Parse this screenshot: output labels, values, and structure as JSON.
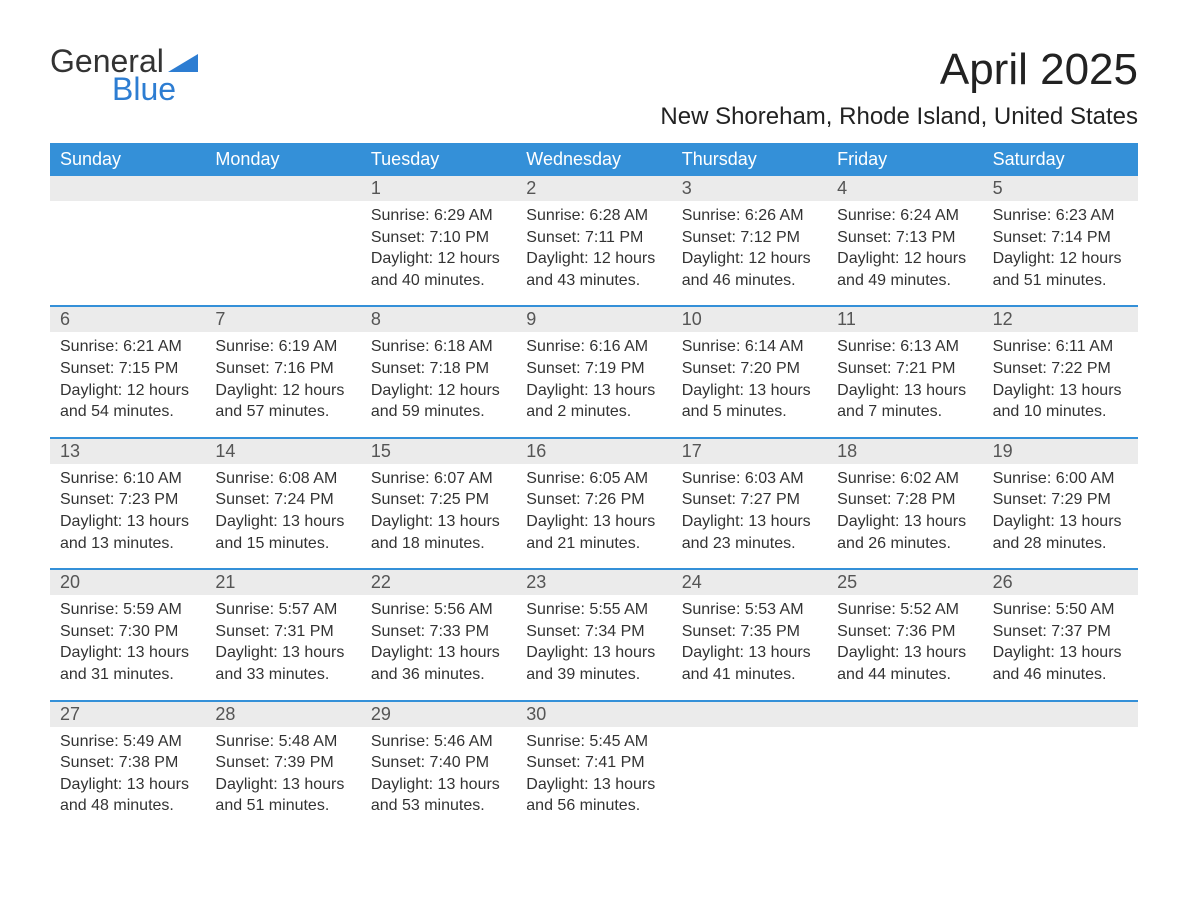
{
  "logo": {
    "top": "General",
    "bottom": "Blue"
  },
  "title": "April 2025",
  "location": "New Shoreham, Rhode Island, United States",
  "header_bg_color": "#3490d8",
  "header_text_color": "#ffffff",
  "number_row_bg": "#ebebeb",
  "week_border_color": "#3490d8",
  "day_headers": [
    "Sunday",
    "Monday",
    "Tuesday",
    "Wednesday",
    "Thursday",
    "Friday",
    "Saturday"
  ],
  "weeks": [
    {
      "days": [
        {
          "num": "",
          "sunrise": "",
          "sunset": "",
          "daylight": ""
        },
        {
          "num": "",
          "sunrise": "",
          "sunset": "",
          "daylight": ""
        },
        {
          "num": "1",
          "sunrise": "Sunrise: 6:29 AM",
          "sunset": "Sunset: 7:10 PM",
          "daylight": "Daylight: 12 hours and 40 minutes."
        },
        {
          "num": "2",
          "sunrise": "Sunrise: 6:28 AM",
          "sunset": "Sunset: 7:11 PM",
          "daylight": "Daylight: 12 hours and 43 minutes."
        },
        {
          "num": "3",
          "sunrise": "Sunrise: 6:26 AM",
          "sunset": "Sunset: 7:12 PM",
          "daylight": "Daylight: 12 hours and 46 minutes."
        },
        {
          "num": "4",
          "sunrise": "Sunrise: 6:24 AM",
          "sunset": "Sunset: 7:13 PM",
          "daylight": "Daylight: 12 hours and 49 minutes."
        },
        {
          "num": "5",
          "sunrise": "Sunrise: 6:23 AM",
          "sunset": "Sunset: 7:14 PM",
          "daylight": "Daylight: 12 hours and 51 minutes."
        }
      ]
    },
    {
      "days": [
        {
          "num": "6",
          "sunrise": "Sunrise: 6:21 AM",
          "sunset": "Sunset: 7:15 PM",
          "daylight": "Daylight: 12 hours and 54 minutes."
        },
        {
          "num": "7",
          "sunrise": "Sunrise: 6:19 AM",
          "sunset": "Sunset: 7:16 PM",
          "daylight": "Daylight: 12 hours and 57 minutes."
        },
        {
          "num": "8",
          "sunrise": "Sunrise: 6:18 AM",
          "sunset": "Sunset: 7:18 PM",
          "daylight": "Daylight: 12 hours and 59 minutes."
        },
        {
          "num": "9",
          "sunrise": "Sunrise: 6:16 AM",
          "sunset": "Sunset: 7:19 PM",
          "daylight": "Daylight: 13 hours and 2 minutes."
        },
        {
          "num": "10",
          "sunrise": "Sunrise: 6:14 AM",
          "sunset": "Sunset: 7:20 PM",
          "daylight": "Daylight: 13 hours and 5 minutes."
        },
        {
          "num": "11",
          "sunrise": "Sunrise: 6:13 AM",
          "sunset": "Sunset: 7:21 PM",
          "daylight": "Daylight: 13 hours and 7 minutes."
        },
        {
          "num": "12",
          "sunrise": "Sunrise: 6:11 AM",
          "sunset": "Sunset: 7:22 PM",
          "daylight": "Daylight: 13 hours and 10 minutes."
        }
      ]
    },
    {
      "days": [
        {
          "num": "13",
          "sunrise": "Sunrise: 6:10 AM",
          "sunset": "Sunset: 7:23 PM",
          "daylight": "Daylight: 13 hours and 13 minutes."
        },
        {
          "num": "14",
          "sunrise": "Sunrise: 6:08 AM",
          "sunset": "Sunset: 7:24 PM",
          "daylight": "Daylight: 13 hours and 15 minutes."
        },
        {
          "num": "15",
          "sunrise": "Sunrise: 6:07 AM",
          "sunset": "Sunset: 7:25 PM",
          "daylight": "Daylight: 13 hours and 18 minutes."
        },
        {
          "num": "16",
          "sunrise": "Sunrise: 6:05 AM",
          "sunset": "Sunset: 7:26 PM",
          "daylight": "Daylight: 13 hours and 21 minutes."
        },
        {
          "num": "17",
          "sunrise": "Sunrise: 6:03 AM",
          "sunset": "Sunset: 7:27 PM",
          "daylight": "Daylight: 13 hours and 23 minutes."
        },
        {
          "num": "18",
          "sunrise": "Sunrise: 6:02 AM",
          "sunset": "Sunset: 7:28 PM",
          "daylight": "Daylight: 13 hours and 26 minutes."
        },
        {
          "num": "19",
          "sunrise": "Sunrise: 6:00 AM",
          "sunset": "Sunset: 7:29 PM",
          "daylight": "Daylight: 13 hours and 28 minutes."
        }
      ]
    },
    {
      "days": [
        {
          "num": "20",
          "sunrise": "Sunrise: 5:59 AM",
          "sunset": "Sunset: 7:30 PM",
          "daylight": "Daylight: 13 hours and 31 minutes."
        },
        {
          "num": "21",
          "sunrise": "Sunrise: 5:57 AM",
          "sunset": "Sunset: 7:31 PM",
          "daylight": "Daylight: 13 hours and 33 minutes."
        },
        {
          "num": "22",
          "sunrise": "Sunrise: 5:56 AM",
          "sunset": "Sunset: 7:33 PM",
          "daylight": "Daylight: 13 hours and 36 minutes."
        },
        {
          "num": "23",
          "sunrise": "Sunrise: 5:55 AM",
          "sunset": "Sunset: 7:34 PM",
          "daylight": "Daylight: 13 hours and 39 minutes."
        },
        {
          "num": "24",
          "sunrise": "Sunrise: 5:53 AM",
          "sunset": "Sunset: 7:35 PM",
          "daylight": "Daylight: 13 hours and 41 minutes."
        },
        {
          "num": "25",
          "sunrise": "Sunrise: 5:52 AM",
          "sunset": "Sunset: 7:36 PM",
          "daylight": "Daylight: 13 hours and 44 minutes."
        },
        {
          "num": "26",
          "sunrise": "Sunrise: 5:50 AM",
          "sunset": "Sunset: 7:37 PM",
          "daylight": "Daylight: 13 hours and 46 minutes."
        }
      ]
    },
    {
      "days": [
        {
          "num": "27",
          "sunrise": "Sunrise: 5:49 AM",
          "sunset": "Sunset: 7:38 PM",
          "daylight": "Daylight: 13 hours and 48 minutes."
        },
        {
          "num": "28",
          "sunrise": "Sunrise: 5:48 AM",
          "sunset": "Sunset: 7:39 PM",
          "daylight": "Daylight: 13 hours and 51 minutes."
        },
        {
          "num": "29",
          "sunrise": "Sunrise: 5:46 AM",
          "sunset": "Sunset: 7:40 PM",
          "daylight": "Daylight: 13 hours and 53 minutes."
        },
        {
          "num": "30",
          "sunrise": "Sunrise: 5:45 AM",
          "sunset": "Sunset: 7:41 PM",
          "daylight": "Daylight: 13 hours and 56 minutes."
        },
        {
          "num": "",
          "sunrise": "",
          "sunset": "",
          "daylight": ""
        },
        {
          "num": "",
          "sunrise": "",
          "sunset": "",
          "daylight": ""
        },
        {
          "num": "",
          "sunrise": "",
          "sunset": "",
          "daylight": ""
        }
      ]
    }
  ]
}
